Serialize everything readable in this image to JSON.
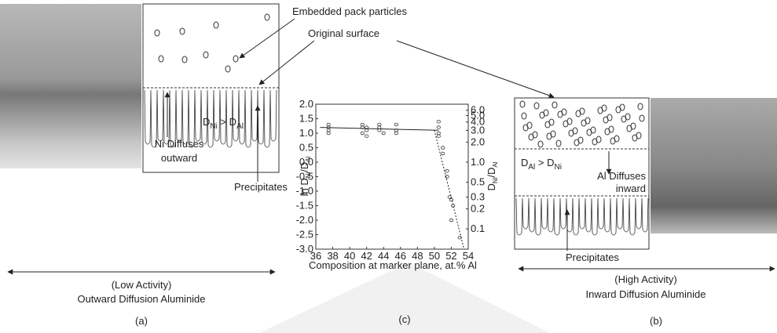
{
  "labels": {
    "pack_particles": "Embedded pack particles",
    "original_surface": "Original surface",
    "left_relation": [
      "D",
      "Ni",
      " > D",
      "Al"
    ],
    "left_diffuses": [
      "Ni Diffuses",
      "outward"
    ],
    "left_precipitates": "Precipitates",
    "left_activity": "(Low Activity)",
    "left_type": "Outward Diffusion Aluminide",
    "left_panel": "(a)",
    "right_relation": [
      "D",
      "Al",
      " > D",
      "Ni"
    ],
    "right_diffuses": [
      "Al Diffuses",
      "inward"
    ],
    "right_precipitates": "Precipitates",
    "right_activity": "(High Activity)",
    "right_type": "Inward Diffusion Aluminide",
    "right_panel": "(b)",
    "middle_panel": "(c)"
  },
  "chart_data": {
    "type": "scatter",
    "x_label": "Composition at marker plane, at.% Al",
    "y_label": [
      "ln D",
      "Ni",
      "/D",
      "Al"
    ],
    "y2_label": [
      "D",
      "Ni",
      "/D",
      "Al"
    ],
    "xlim": [
      36,
      54
    ],
    "xticks": [
      36,
      38,
      40,
      42,
      44,
      46,
      48,
      50,
      52,
      54
    ],
    "ylim": [
      -3,
      2
    ],
    "yticks": [
      {
        "value": 2,
        "label": "2.0"
      },
      1.5,
      {
        "value": 1,
        "label": "1.0"
      },
      0.5,
      {
        "value": 0,
        "label": "0.0"
      },
      -0.5,
      {
        "value": -1,
        "label": "-1.0"
      },
      -1.5,
      {
        "value": -2,
        "label": "-2.0"
      },
      -2.5,
      {
        "value": -3,
        "label": "-3.0"
      }
    ],
    "y2lim": [
      0.0498,
      7.389
    ],
    "y2log": true,
    "y2ticks": [
      {
        "value": 6,
        "label": "6.0"
      },
      {
        "value": 5,
        "label": "5.0"
      },
      {
        "value": 4,
        "label": "4.0"
      },
      {
        "value": 3,
        "label": "3.0"
      },
      {
        "value": 2,
        "label": "2.0"
      },
      {
        "value": 1,
        "label": "1.0"
      },
      0.5,
      0.3,
      0.2,
      0.1
    ],
    "series": [
      {
        "color": "#333333",
        "x": [
          37.5,
          37.5,
          37.5,
          37.5,
          41.5,
          41.5,
          41.5,
          42,
          42,
          42,
          43.5,
          43.5,
          43.5,
          44,
          45.5,
          45.5,
          45.5,
          50.5,
          50.5,
          50.5,
          50.5,
          51,
          51,
          51.5,
          51.5,
          51.8,
          52,
          52,
          52.2,
          53
        ],
        "values": [
          1.3,
          1.2,
          1.1,
          1.0,
          1.3,
          1.2,
          1.0,
          1.2,
          1.1,
          0.9,
          1.3,
          1.2,
          1.1,
          1.0,
          1.3,
          1.1,
          1.0,
          1.4,
          1.2,
          1.0,
          0.9,
          0.5,
          0.3,
          -0.3,
          -0.5,
          -1.2,
          -1.3,
          -2.0,
          -1.5,
          -2.6
        ]
      }
    ],
    "lines": [
      {
        "style": "solid",
        "x": [
          36.5,
          50.5
        ],
        "values": [
          1.2,
          1.1
        ]
      },
      {
        "style": "dashed",
        "x": [
          50,
          53.5
        ],
        "values": [
          1.1,
          -3.0
        ]
      }
    ]
  }
}
